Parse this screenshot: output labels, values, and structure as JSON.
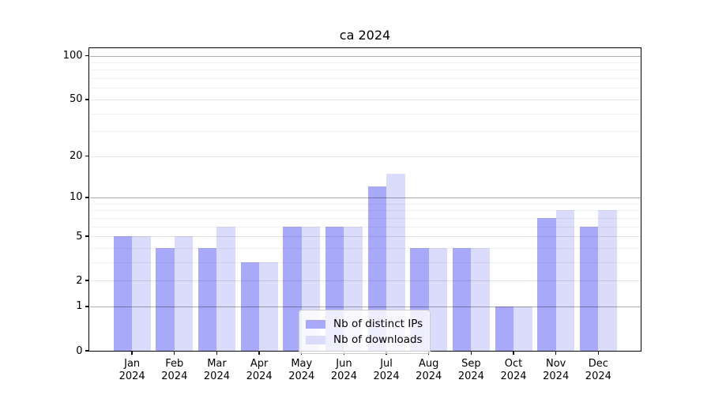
{
  "chart_data": {
    "type": "bar",
    "title": "ca 2024",
    "xlabel": "",
    "ylabel": "",
    "yscale": "log1p",
    "ylim": [
      0,
      112
    ],
    "yticks": [
      0,
      1,
      2,
      5,
      10,
      20,
      50,
      100
    ],
    "minor_yticks": [
      3,
      4,
      6,
      7,
      8,
      9,
      30,
      40,
      60,
      70,
      80,
      90
    ],
    "grid": true,
    "legend_position": "bottom-center",
    "categories": [
      "Jan 2024",
      "Feb 2024",
      "Mar 2024",
      "Apr 2024",
      "May 2024",
      "Jun 2024",
      "Jul 2024",
      "Aug 2024",
      "Sep 2024",
      "Oct 2024",
      "Nov 2024",
      "Dec 2024"
    ],
    "series": [
      {
        "name": "Nb of distinct IPs",
        "key": "ips",
        "color": "#a9a9fa",
        "values": [
          5,
          4,
          4,
          3,
          6,
          6,
          12,
          4,
          4,
          1,
          7,
          6
        ]
      },
      {
        "name": "Nb of downloads",
        "key": "downloads",
        "color": "#dbdbfb",
        "values": [
          5,
          5,
          6,
          3,
          6,
          6,
          15,
          4,
          4,
          1,
          8,
          8
        ]
      }
    ]
  },
  "colors": {
    "background": "#ffffff",
    "axis": "#000000",
    "grid_major": "rgba(0,0,0,0.32)",
    "grid_mid": "rgba(0,0,0,0.10)",
    "grid_minor": "rgba(0,0,0,0.055)",
    "text": "#000000"
  }
}
